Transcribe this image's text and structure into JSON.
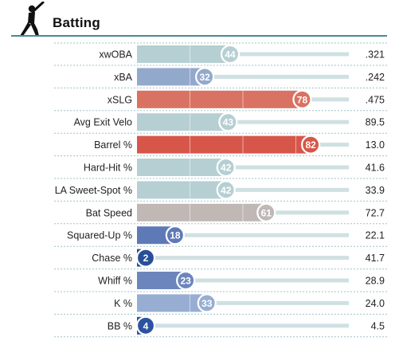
{
  "header": {
    "title": "Batting",
    "icon": "batter-silhouette-icon"
  },
  "chart_data": {
    "type": "bar",
    "title": "Batting",
    "xlim": [
      0,
      100
    ],
    "grid": true,
    "rows": [
      {
        "metric": "xwOBA",
        "percentile": 44,
        "value": ".321",
        "color": "#b6cfd3"
      },
      {
        "metric": "xBA",
        "percentile": 32,
        "value": ".242",
        "color": "#93a9cc"
      },
      {
        "metric": "xSLG",
        "percentile": 78,
        "value": ".475",
        "color": "#d97262"
      },
      {
        "metric": "Avg Exit Velo",
        "percentile": 43,
        "value": "89.5",
        "color": "#b6cfd3"
      },
      {
        "metric": "Barrel %",
        "percentile": 82,
        "value": "13.0",
        "color": "#d6574a"
      },
      {
        "metric": "Hard-Hit %",
        "percentile": 42,
        "value": "41.6",
        "color": "#b6cfd3"
      },
      {
        "metric": "LA Sweet-Spot %",
        "percentile": 42,
        "value": "33.9",
        "color": "#b6cfd3"
      },
      {
        "metric": "Bat Speed",
        "percentile": 61,
        "value": "72.7",
        "color": "#c0b8b5"
      },
      {
        "metric": "Squared-Up %",
        "percentile": 18,
        "value": "22.1",
        "color": "#5e7ab6"
      },
      {
        "metric": "Chase %",
        "percentile": 2,
        "value": "41.7",
        "color": "#284f98"
      },
      {
        "metric": "Whiff %",
        "percentile": 23,
        "value": "28.9",
        "color": "#6c86bd"
      },
      {
        "metric": "K %",
        "percentile": 33,
        "value": "24.0",
        "color": "#97aed2"
      },
      {
        "metric": "BB %",
        "percentile": 4,
        "value": "4.5",
        "color": "#2c53a0"
      }
    ],
    "track_color": "#cfe0e3",
    "separator_color": "#9fc3c8"
  }
}
